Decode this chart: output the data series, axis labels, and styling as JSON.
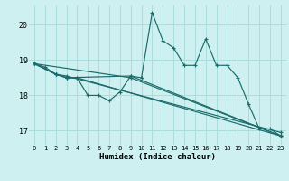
{
  "background_color": "#cff0f0",
  "grid_color": "#aadddd",
  "line_color": "#1a6b6b",
  "xlabel": "Humidex (Indice chaleur)",
  "xlim": [
    -0.5,
    23.5
  ],
  "ylim": [
    16.6,
    20.55
  ],
  "yticks": [
    17,
    18,
    19,
    20
  ],
  "xticks": [
    0,
    1,
    2,
    3,
    4,
    5,
    6,
    7,
    8,
    9,
    10,
    11,
    12,
    13,
    14,
    15,
    16,
    17,
    18,
    19,
    20,
    21,
    22,
    23
  ],
  "series": [
    {
      "x": [
        0,
        1,
        2,
        3,
        4,
        5,
        6,
        7,
        8,
        9,
        10,
        11,
        12,
        13,
        14,
        15,
        16,
        17,
        18,
        19,
        20,
        21,
        22,
        23
      ],
      "y": [
        18.9,
        18.8,
        18.6,
        18.5,
        18.5,
        18.0,
        18.0,
        17.85,
        18.1,
        18.55,
        18.5,
        20.35,
        19.55,
        19.35,
        18.85,
        18.85,
        19.6,
        18.85,
        18.85,
        18.5,
        17.75,
        17.05,
        17.05,
        16.85
      ]
    },
    {
      "x": [
        0,
        2,
        3,
        4,
        23
      ],
      "y": [
        18.9,
        18.6,
        18.5,
        18.5,
        16.85
      ]
    },
    {
      "x": [
        0,
        2,
        3,
        23
      ],
      "y": [
        18.9,
        18.6,
        18.55,
        16.95
      ]
    },
    {
      "x": [
        0,
        2,
        3,
        9,
        23
      ],
      "y": [
        18.9,
        18.6,
        18.5,
        18.55,
        16.85
      ]
    },
    {
      "x": [
        0,
        9,
        23
      ],
      "y": [
        18.9,
        18.5,
        16.85
      ]
    }
  ]
}
